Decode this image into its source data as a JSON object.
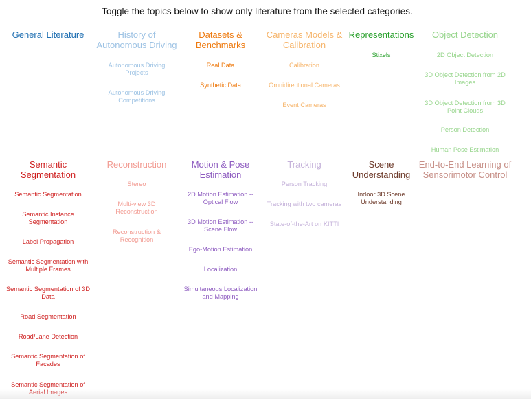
{
  "instruction": "Toggle the topics below to show only literature from the selected categories.",
  "colors": {
    "general": "#1f6fb2",
    "history": "#9ec3e4",
    "datasets": "#ee7a0f",
    "cameras": "#f6b46a",
    "representations": "#29a02c",
    "object_detection": "#96d58b",
    "semantic_segmentation": "#cf2020",
    "reconstruction": "#f29b92",
    "motion_pose": "#8e5cc0",
    "tracking": "#c5b2da",
    "scene_understanding": "#6d3a2a",
    "end_to_end": "#c79088"
  },
  "categories": {
    "general": {
      "title": "General Literature",
      "items": []
    },
    "history": {
      "title": [
        "History of",
        "Autonomous Driving"
      ],
      "items": [
        [
          "Autonomous Driving",
          "Projects"
        ],
        [
          "Autonomous Driving",
          "Competitions"
        ]
      ]
    },
    "datasets": {
      "title": [
        "Datasets &",
        "Benchmarks"
      ],
      "items": [
        [
          "Real Data"
        ],
        [
          "Synthetic Data"
        ]
      ]
    },
    "cameras": {
      "title": [
        "Cameras Models &",
        "Calibration"
      ],
      "items": [
        [
          "Calibration"
        ],
        [
          "Omnidirectional Cameras"
        ],
        [
          "Event Cameras"
        ]
      ]
    },
    "representations": {
      "title": [
        "Representations"
      ],
      "items": [
        [
          "Stixels"
        ]
      ]
    },
    "object_detection": {
      "title": [
        "Object Detection"
      ],
      "items": [
        [
          "2D Object Detection"
        ],
        [
          "3D Object Detection from 2D",
          "Images"
        ],
        [
          "3D Object Detection from 3D",
          "Point Clouds"
        ],
        [
          "Person Detection"
        ],
        [
          "Human Pose Estimation"
        ]
      ]
    },
    "semantic_segmentation": {
      "title": [
        "Semantic",
        "Segmentation"
      ],
      "items": [
        [
          "Semantic Segmentation"
        ],
        [
          "Semantic Instance",
          "Segmentation"
        ],
        [
          "Label Propagation"
        ],
        [
          "Semantic Segmentation with",
          "Multiple Frames"
        ],
        [
          "Semantic Segmentation of 3D",
          "Data"
        ],
        [
          "Road Segmentation"
        ],
        [
          "Road/Lane Detection"
        ],
        [
          "Semantic Segmentation of",
          "Facades"
        ],
        [
          "Semantic Segmentation of",
          "Aerial Images"
        ]
      ]
    },
    "reconstruction": {
      "title": [
        "Reconstruction"
      ],
      "items": [
        [
          "Stereo"
        ],
        [
          "Multi-view 3D",
          "Reconstruction"
        ],
        [
          "Reconstruction &",
          "Recognition"
        ]
      ]
    },
    "motion_pose": {
      "title": [
        "Motion & Pose",
        "Estimation"
      ],
      "items": [
        [
          "2D Motion Estimation --",
          "Optical Flow"
        ],
        [
          "3D Motion Estimation --",
          "Scene Flow"
        ],
        [
          "Ego-Motion Estimation"
        ],
        [
          "Localization"
        ],
        [
          "Simultaneous Localization",
          "and Mapping"
        ]
      ]
    },
    "tracking": {
      "title": [
        "Tracking"
      ],
      "items": [
        [
          "Person Tracking"
        ],
        [
          "Tracking with two cameras"
        ],
        [
          "State-of-the-Art on KITTI"
        ]
      ]
    },
    "scene_understanding": {
      "title": [
        "Scene",
        "Understanding"
      ],
      "items": [
        [
          "Indoor 3D Scene",
          "Understanding"
        ]
      ]
    },
    "end_to_end": {
      "title": [
        "End-to-End Learning of",
        "Sensorimotor Control"
      ],
      "items": []
    }
  }
}
